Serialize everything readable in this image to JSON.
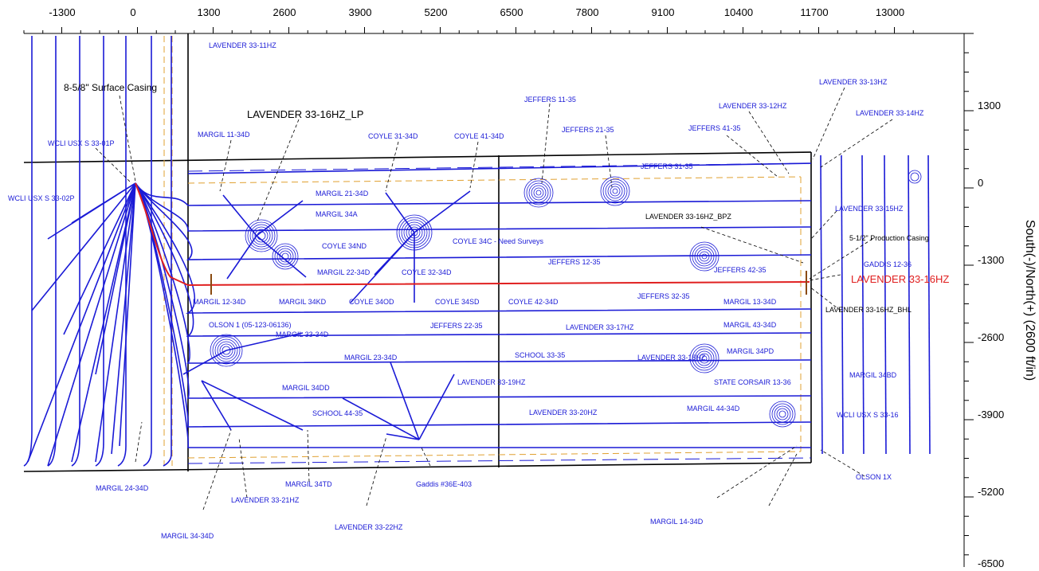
{
  "plot": {
    "x_ticks": [
      "-1300",
      "0",
      "1300",
      "2600",
      "3900",
      "5200",
      "6500",
      "7800",
      "9100",
      "10400",
      "11700",
      "13000"
    ],
    "y_ticks": [
      "1300",
      "0",
      "-1300",
      "-2600",
      "-3900",
      "-5200",
      "-6500"
    ],
    "y_axis_title": "South(-)/North(+) (2600 ft/in)"
  },
  "labels": {
    "surface_casing": "8-5/8\" Surface Casing",
    "lp": "LAVENDER 33-16HZ_LP",
    "bpz": "LAVENDER 33-16HZ_BPZ",
    "production_casing": "5-1/2\" Production Casing",
    "main_well": "LAVENDER 33-16HZ",
    "bhl": "LAVENDER 33-16HZ_BHL",
    "wells": [
      "LAVENDER 33-11HZ",
      "LAVENDER 33-13HZ",
      "LAVENDER 33-12HZ",
      "LAVENDER 33-14HZ",
      "JEFFERS 11-35",
      "JEFFERS 41-35",
      "JEFFERS 21-35",
      "WCLI USX S 33-01P",
      "MARGIL 11-34D",
      "COYLE 31-34D",
      "COYLE 41-34D",
      "JEFFERS 31-35",
      "MARGIL 21-34D",
      "WCLI USX S 33-02P",
      "MARGIL 34A",
      "LAVENDER 33-15HZ",
      "COYLE 34ND",
      "COYLE 34C - Need Surveys",
      "MARGIL 22-34D",
      "COYLE 32-34D",
      "JEFFERS 12-35",
      "JEFFERS 42-35",
      "GADDIS 12-36",
      "MARGIL 12-34D",
      "MARGIL 34KD",
      "COYLE 34OD",
      "COYLE 34SD",
      "COYLE 42-34D",
      "JEFFERS 32-35",
      "MARGIL 13-34D",
      "OLSON 1 (05-123-06136)",
      "MARGIL 33-34D",
      "JEFFERS 22-35",
      "LAVENDER 33-17HZ",
      "MARGIL 43-34D",
      "SCHOOL 33-35",
      "LAVENDER 33-18HZ",
      "MARGIL 34PD",
      "MARGIL 23-34D",
      "MARGIL 34DD",
      "LAVENDER 33-19HZ",
      "STATE CORSAIR 13-36",
      "MARGIL 34BD",
      "SCHOOL 44-35",
      "MARGIL 44-34D",
      "LAVENDER 33-20HZ",
      "WCLI USX S 33-16",
      "MARGIL 24-34D",
      "MARGIL 34TD",
      "Gaddis #36E-403",
      "OLSON 1X",
      "LAVENDER 33-21HZ",
      "MARGIL 14-34D",
      "MARGIL 34-34D",
      "LAVENDER 33-22HZ"
    ]
  },
  "colors": {
    "well": "#1a1ad6",
    "main": "#e02020",
    "lease": "#000000",
    "casing": "#e0a030"
  }
}
